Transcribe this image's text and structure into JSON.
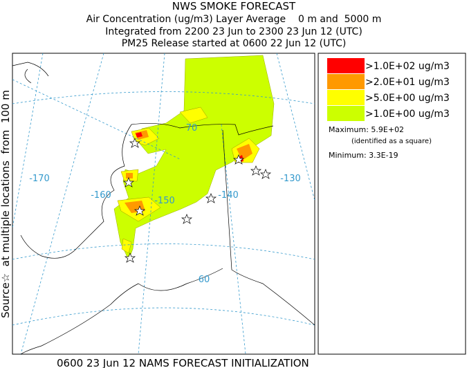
{
  "header": {
    "lines": [
      "NWS SMOKE FORECAST",
      "Air Concentration (ug/m3) Layer Average    0 m and  5000 m",
      "Integrated from 2200 23 Jun to 2300 23 Jun 12 (UTC)",
      "PM25 Release started at 0600 22 Jun 12 (UTC)"
    ]
  },
  "side_label": "Source☆  at multiple locations  from  100 m",
  "map": {
    "labels": [
      "-170",
      "-160",
      "-150",
      "-140",
      "-130",
      "70",
      "60"
    ]
  },
  "legend": {
    "items": [
      {
        "label": ">1.0E+02 ug/m3",
        "color": "#ff0000"
      },
      {
        "label": ">2.0E+01 ug/m3",
        "color": "#ff9900"
      },
      {
        "label": ">5.0E+00 ug/m3",
        "color": "#ffff00"
      },
      {
        "label": ">1.0E+00 ug/m3",
        "color": "#ccff00"
      }
    ],
    "maximum": "Maximum: 5.9E+02",
    "maximum_note": "(identified as a square)",
    "minimum": "Minimum: 3.3E-19"
  },
  "footer": "0600 23 Jun 12 NAMS FORECAST INITIALIZATION"
}
